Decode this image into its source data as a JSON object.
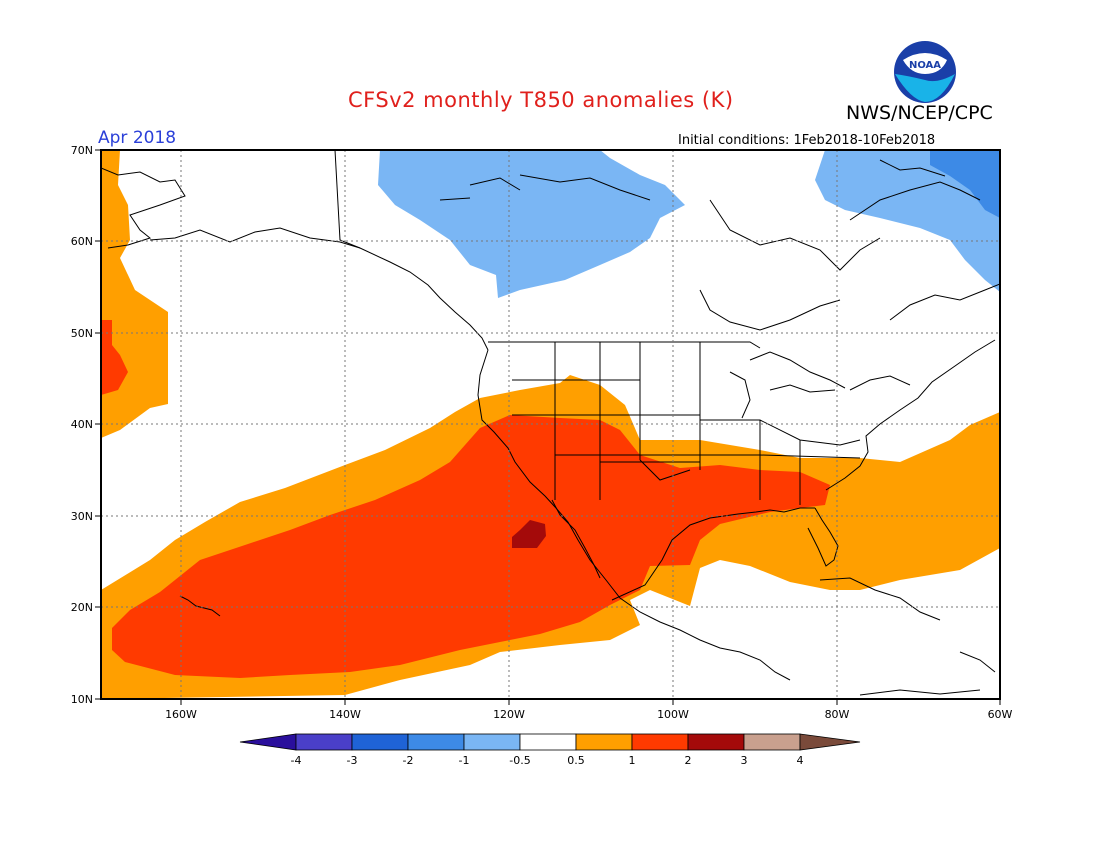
{
  "header": {
    "title": "CFSv2 monthly T850 anomalies (K)",
    "credit": "NWS/NCEP/CPC",
    "logo_text": "NOAA",
    "month": "Apr 2018",
    "initial_conditions": "Initial conditions: 1Feb2018-10Feb2018"
  },
  "map": {
    "lon_labels": [
      "160W",
      "140W",
      "120W",
      "100W",
      "80W",
      "60W"
    ],
    "lat_labels": [
      "70N",
      "60N",
      "50N",
      "40N",
      "30N",
      "20N",
      "10N"
    ]
  },
  "colorbar": {
    "tick_labels": [
      "-4",
      "-3",
      "-2",
      "-1",
      "-0.5",
      "0.5",
      "1",
      "2",
      "3",
      "4"
    ],
    "colors": [
      "#2a0f9c",
      "#4a3fc8",
      "#1f63d6",
      "#3d8ae6",
      "#7ab6f4",
      "#ffffff",
      "#ff9f00",
      "#ff3a00",
      "#a40a0a",
      "#c9a08e",
      "#7a4a3a"
    ]
  }
}
